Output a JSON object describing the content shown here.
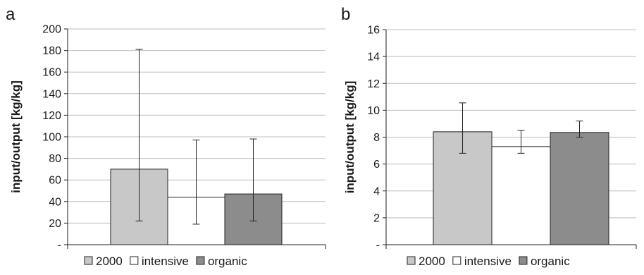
{
  "chart_data": [
    {
      "type": "bar",
      "panel_label": "a",
      "ylabel": "input/output [kg/kg]",
      "ylim": [
        0,
        200
      ],
      "yticks": [
        0,
        20,
        40,
        60,
        80,
        100,
        120,
        140,
        160,
        180,
        200
      ],
      "ytick_labels": [
        "-",
        "20",
        "40",
        "60",
        "80",
        "100",
        "120",
        "140",
        "160",
        "180",
        "200"
      ],
      "grid": true,
      "legend_position": "bottom",
      "series": [
        {
          "name": "2000",
          "value": 70,
          "err_low": 22,
          "err_high": 181,
          "color": "#c8c8c8"
        },
        {
          "name": "intensive",
          "value": 44,
          "err_low": 19,
          "err_high": 97,
          "color": "#ffffff"
        },
        {
          "name": "organic",
          "value": 47,
          "err_low": 22,
          "err_high": 98,
          "color": "#8c8c8c"
        }
      ]
    },
    {
      "type": "bar",
      "panel_label": "b",
      "ylabel": "input/output [kg/kg]",
      "ylim": [
        0,
        16
      ],
      "yticks": [
        0,
        2,
        4,
        6,
        8,
        10,
        12,
        14,
        16
      ],
      "ytick_labels": [
        "-",
        "2",
        "4",
        "6",
        "8",
        "10",
        "12",
        "14",
        "16"
      ],
      "grid": true,
      "legend_position": "bottom",
      "series": [
        {
          "name": "2000",
          "value": 8.4,
          "err_low": 6.8,
          "err_high": 10.55,
          "color": "#c8c8c8"
        },
        {
          "name": "intensive",
          "value": 7.3,
          "err_low": 6.8,
          "err_high": 8.5,
          "color": "#ffffff"
        },
        {
          "name": "organic",
          "value": 8.35,
          "err_low": 8.0,
          "err_high": 9.2,
          "color": "#8c8c8c"
        }
      ]
    }
  ]
}
